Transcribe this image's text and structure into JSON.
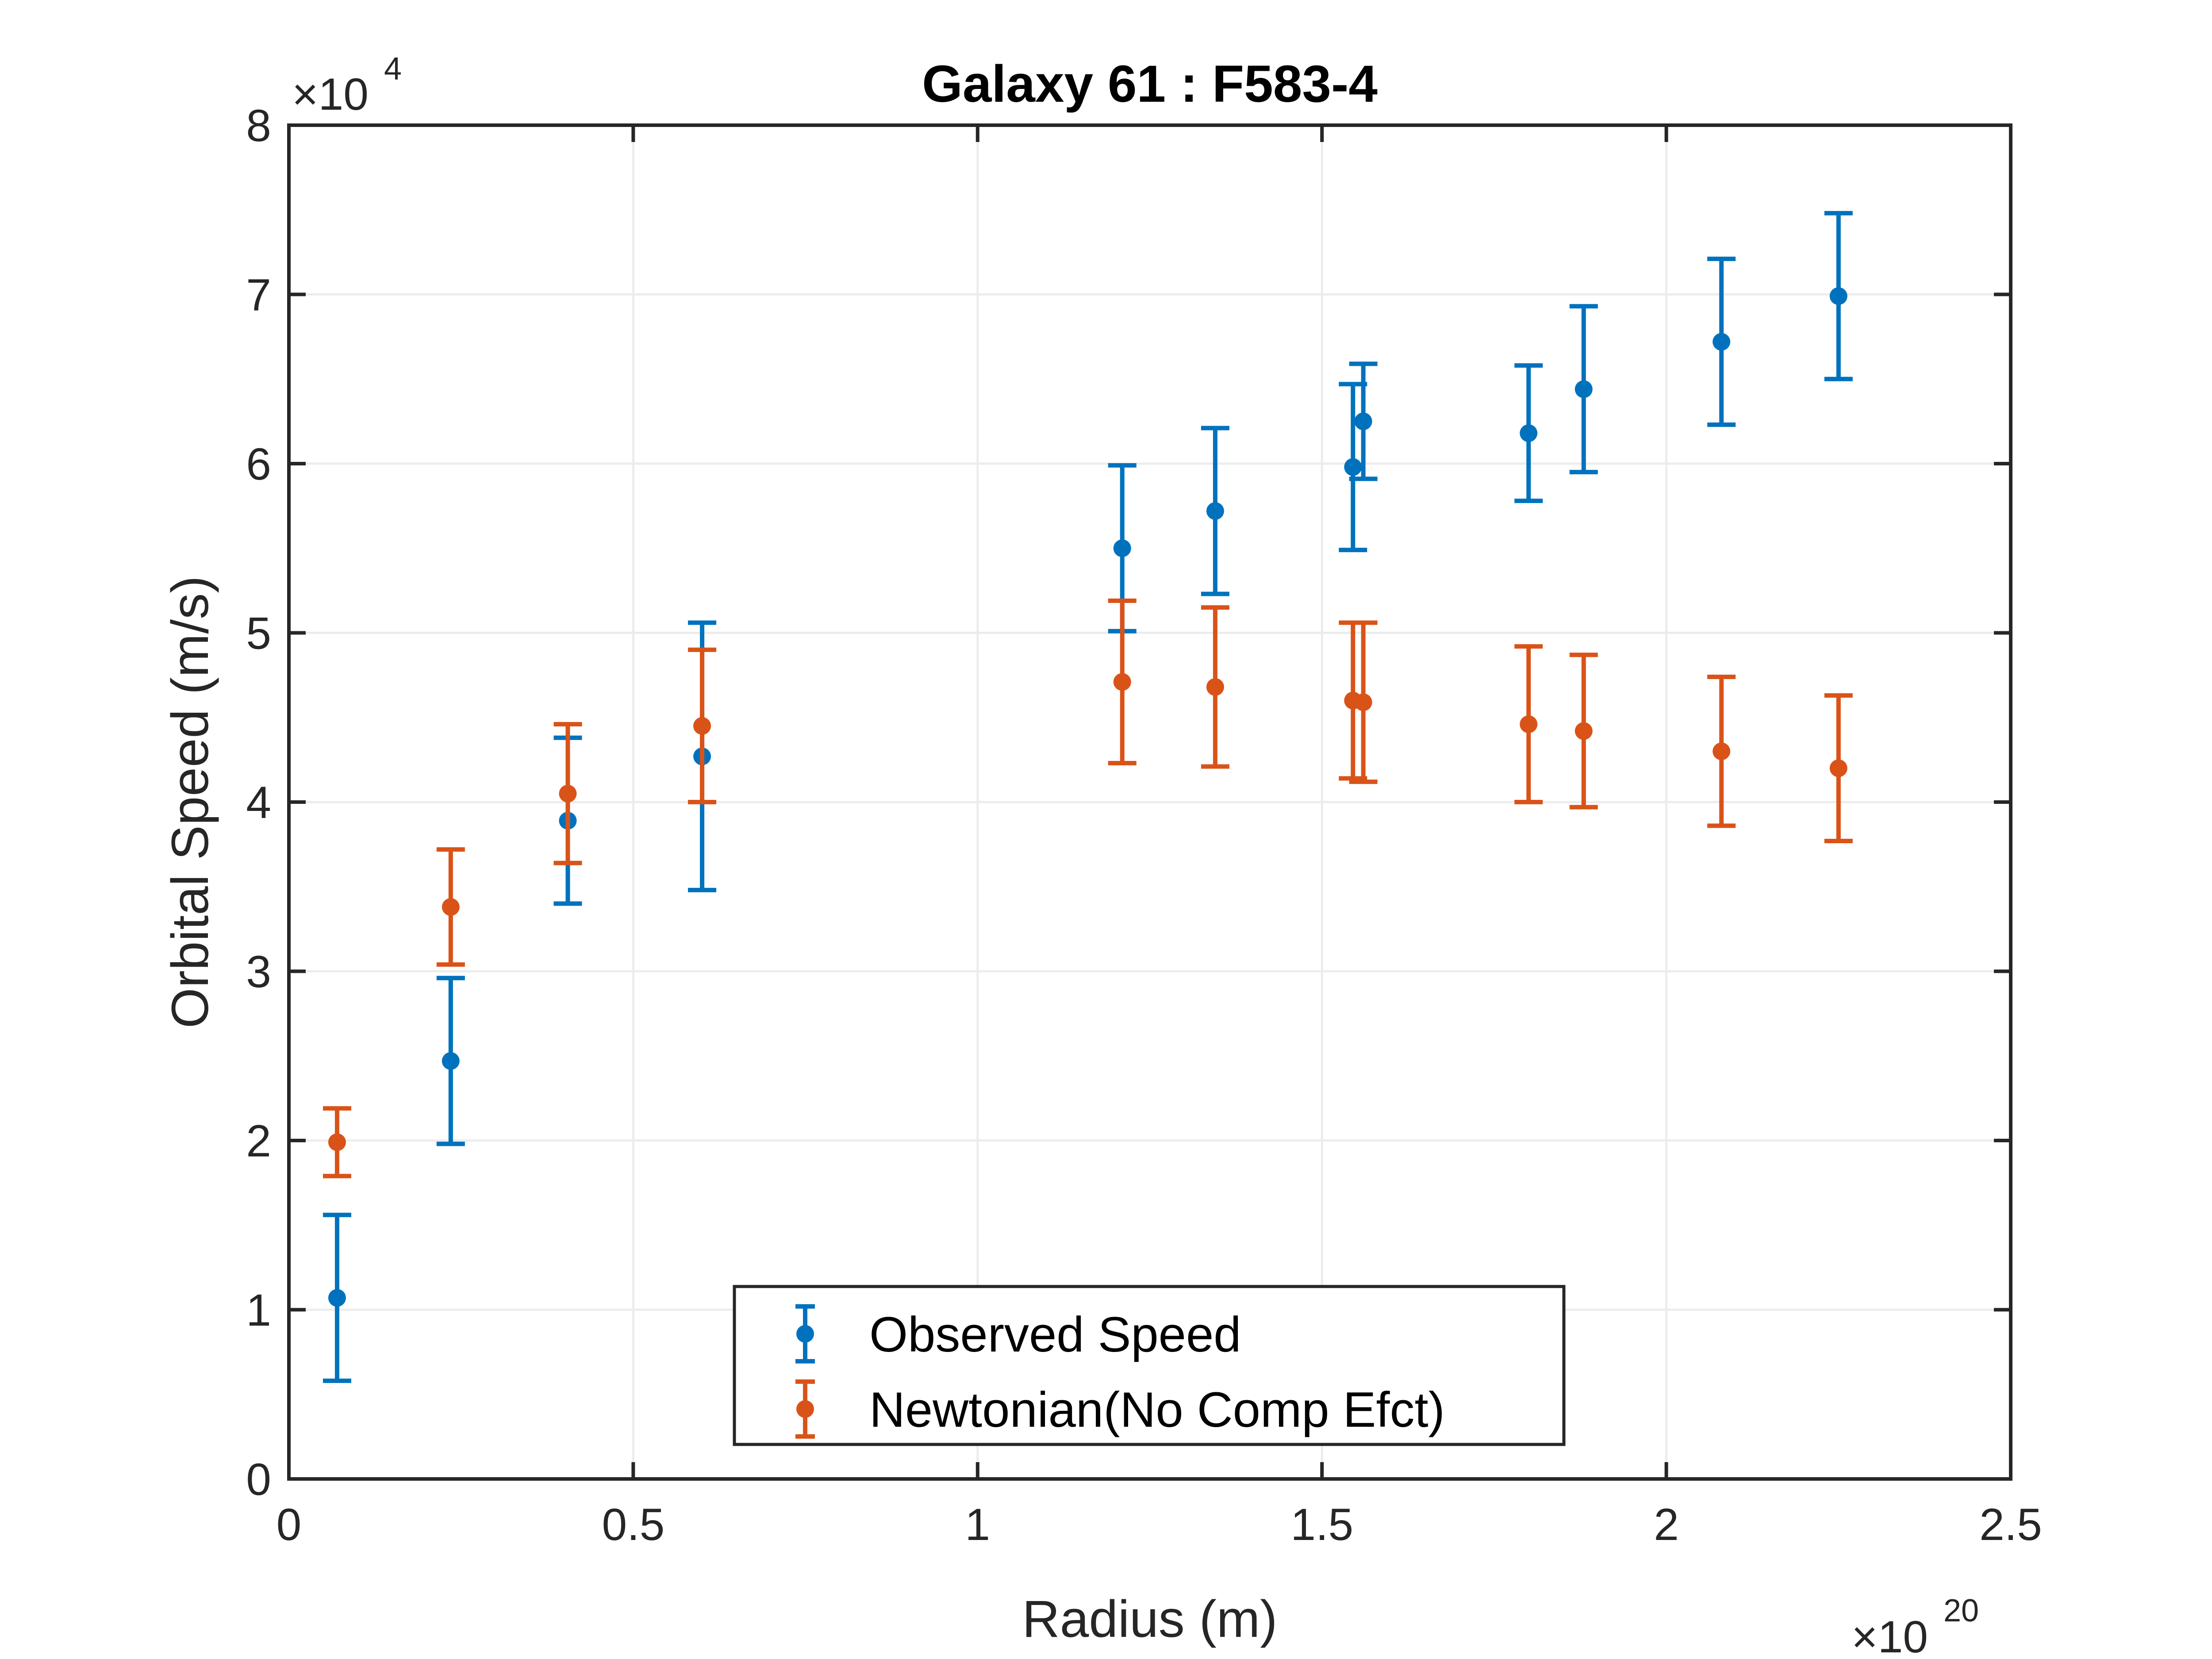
{
  "chart_data": {
    "type": "scatter",
    "title": "Galaxy 61 : F583-4",
    "xlabel": "Radius (m)",
    "ylabel": "Orbital Speed (m/s)",
    "xlim": [
      0,
      2.5e+20
    ],
    "ylim": [
      0,
      80000
    ],
    "x_ticks": [
      0,
      0.5,
      1,
      1.5,
      2,
      2.5
    ],
    "x_tick_labels": [
      "0",
      "0.5",
      "1",
      "1.5",
      "2",
      "2.5"
    ],
    "x_multiplier": {
      "base": "×10",
      "exponent": "20"
    },
    "y_ticks": [
      0,
      1,
      2,
      3,
      4,
      5,
      6,
      7,
      8
    ],
    "y_tick_labels": [
      "0",
      "1",
      "2",
      "3",
      "4",
      "5",
      "6",
      "7",
      "8"
    ],
    "y_multiplier": {
      "base": "×10",
      "exponent": "4"
    },
    "grid": true,
    "legend_position": "bottom-center",
    "series": [
      {
        "name": "Observed Speed",
        "color": "#0072BD",
        "x": [
          7e+18,
          2.35e+19,
          4.05e+19,
          6e+19,
          1.21e+20,
          1.345e+20,
          1.545e+20,
          1.56e+20,
          1.8e+20,
          1.88e+20,
          2.08e+20,
          2.25e+20
        ],
        "y": [
          10700,
          24700,
          38900,
          42700,
          55000,
          57200,
          59800,
          62500,
          61800,
          64400,
          67200,
          69900
        ],
        "err": [
          4900,
          4900,
          4900,
          7900,
          4900,
          4900,
          4900,
          3400,
          4000,
          4900,
          4900,
          4900
        ]
      },
      {
        "name": "Newtonian(No Comp Efct)",
        "color": "#D95319",
        "x": [
          7e+18,
          2.35e+19,
          4.05e+19,
          6e+19,
          1.21e+20,
          1.345e+20,
          1.545e+20,
          1.56e+20,
          1.8e+20,
          1.88e+20,
          2.08e+20,
          2.25e+20
        ],
        "y": [
          19900,
          33800,
          40500,
          44500,
          47100,
          46800,
          46000,
          45900,
          44600,
          44200,
          43000,
          42000
        ],
        "err": [
          2000,
          3400,
          4100,
          4500,
          4800,
          4700,
          4600,
          4700,
          4600,
          4500,
          4400,
          4300
        ]
      }
    ]
  }
}
